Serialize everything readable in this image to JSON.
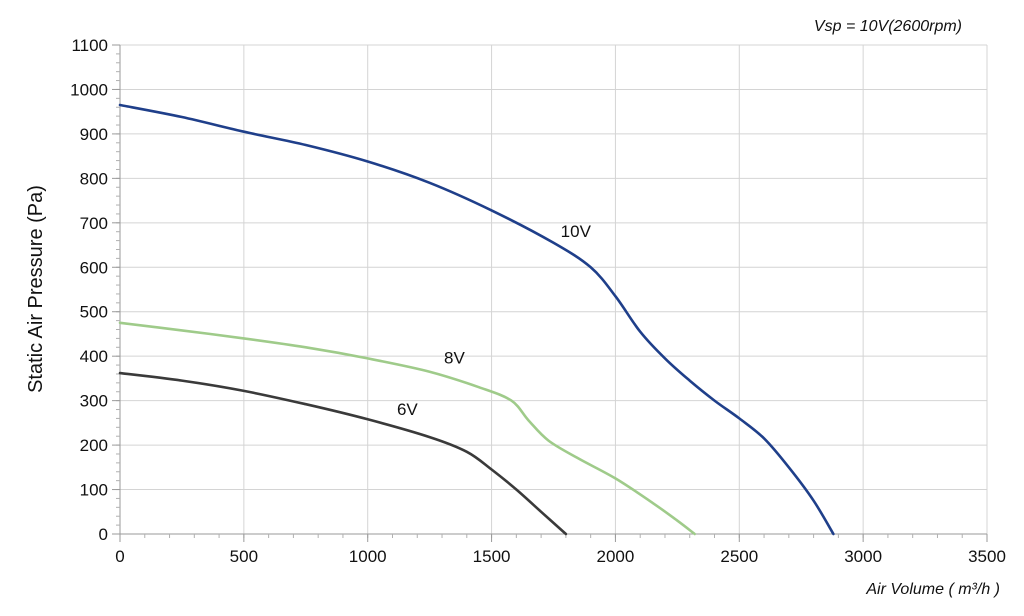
{
  "chart_data": {
    "type": "line",
    "annotation": "Vsp = 10V(2600rpm)",
    "xlabel": "Air Volume ( m³/h )",
    "ylabel": "Static Air Pressure  (Pa)",
    "xlim": [
      0,
      3500
    ],
    "ylim": [
      0,
      1100
    ],
    "x_ticks": [
      0,
      500,
      1000,
      1500,
      2000,
      2500,
      3000,
      3500
    ],
    "y_ticks": [
      0,
      100,
      200,
      300,
      400,
      500,
      600,
      700,
      800,
      900,
      1000,
      1100
    ],
    "grid": true,
    "series": [
      {
        "name": "10V",
        "color": "#1f3f8a",
        "label_at": [
          1840,
          668
        ],
        "points": [
          [
            0,
            965
          ],
          [
            250,
            938
          ],
          [
            500,
            905
          ],
          [
            750,
            875
          ],
          [
            1000,
            838
          ],
          [
            1250,
            790
          ],
          [
            1500,
            728
          ],
          [
            1750,
            655
          ],
          [
            1900,
            600
          ],
          [
            2000,
            535
          ],
          [
            2100,
            455
          ],
          [
            2200,
            395
          ],
          [
            2300,
            345
          ],
          [
            2400,
            300
          ],
          [
            2500,
            260
          ],
          [
            2600,
            215
          ],
          [
            2700,
            150
          ],
          [
            2800,
            75
          ],
          [
            2880,
            0
          ]
        ]
      },
      {
        "name": "8V",
        "color": "#9fcb8a",
        "label_at": [
          1350,
          384
        ],
        "points": [
          [
            0,
            475
          ],
          [
            250,
            458
          ],
          [
            500,
            440
          ],
          [
            750,
            420
          ],
          [
            1000,
            395
          ],
          [
            1250,
            365
          ],
          [
            1450,
            330
          ],
          [
            1580,
            300
          ],
          [
            1650,
            255
          ],
          [
            1730,
            210
          ],
          [
            1850,
            170
          ],
          [
            2000,
            125
          ],
          [
            2150,
            70
          ],
          [
            2250,
            30
          ],
          [
            2320,
            0
          ]
        ]
      },
      {
        "name": "6V",
        "color": "#3a3a3a",
        "label_at": [
          1160,
          268
        ],
        "points": [
          [
            0,
            362
          ],
          [
            250,
            345
          ],
          [
            500,
            322
          ],
          [
            750,
            292
          ],
          [
            1000,
            258
          ],
          [
            1250,
            218
          ],
          [
            1400,
            185
          ],
          [
            1500,
            145
          ],
          [
            1600,
            100
          ],
          [
            1700,
            50
          ],
          [
            1800,
            0
          ]
        ]
      }
    ]
  }
}
